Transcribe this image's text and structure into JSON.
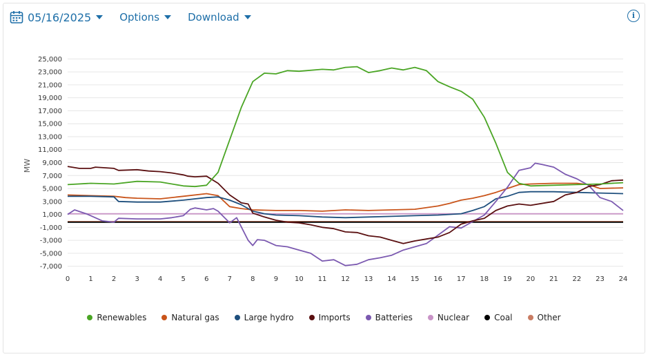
{
  "toolbar": {
    "date": "05/16/2025",
    "options_label": "Options",
    "download_label": "Download"
  },
  "colors": {
    "accent": "#1e6fa8"
  },
  "icons": {
    "calendar": "calendar-icon",
    "info": "info-icon"
  },
  "chart_data": {
    "type": "line",
    "title": "",
    "xlabel": "",
    "ylabel": "MW",
    "xlim": [
      0,
      24
    ],
    "ylim": [
      -8000,
      26000
    ],
    "x_ticks": [
      0,
      1,
      2,
      3,
      4,
      5,
      6,
      7,
      8,
      9,
      10,
      11,
      12,
      13,
      14,
      15,
      16,
      17,
      18,
      19,
      20,
      21,
      22,
      23,
      24
    ],
    "y_ticks": [
      -7000,
      -5000,
      -3000,
      -1000,
      1000,
      3000,
      5000,
      7000,
      9000,
      11000,
      13000,
      15000,
      17000,
      19000,
      21000,
      23000,
      25000
    ],
    "y_tick_labels": [
      "-7,000",
      "-5,000",
      "-3,000",
      "-1,000",
      "1,000",
      "3,000",
      "5,000",
      "7,000",
      "9,000",
      "11,000",
      "13,000",
      "15,000",
      "17,000",
      "19,000",
      "21,000",
      "23,000",
      "25,000"
    ],
    "grid": true,
    "legend_position": "bottom",
    "series": [
      {
        "name": "Renewables",
        "color": "#4aa524",
        "points": [
          [
            0,
            5600
          ],
          [
            1,
            5800
          ],
          [
            2,
            5700
          ],
          [
            3,
            6100
          ],
          [
            4,
            6000
          ],
          [
            5,
            5400
          ],
          [
            5.5,
            5300
          ],
          [
            6,
            5500
          ],
          [
            6.5,
            7500
          ],
          [
            7,
            12500
          ],
          [
            7.5,
            17500
          ],
          [
            8,
            21500
          ],
          [
            8.5,
            22800
          ],
          [
            9,
            22700
          ],
          [
            9.5,
            23200
          ],
          [
            10,
            23100
          ],
          [
            11,
            23400
          ],
          [
            11.5,
            23300
          ],
          [
            12,
            23700
          ],
          [
            12.5,
            23800
          ],
          [
            13,
            22900
          ],
          [
            13.5,
            23200
          ],
          [
            14,
            23600
          ],
          [
            14.5,
            23300
          ],
          [
            15,
            23700
          ],
          [
            15.5,
            23200
          ],
          [
            16,
            21500
          ],
          [
            16.5,
            20700
          ],
          [
            17,
            20000
          ],
          [
            17.5,
            18800
          ],
          [
            18,
            16000
          ],
          [
            18.5,
            12000
          ],
          [
            19,
            7500
          ],
          [
            19.5,
            5800
          ],
          [
            20,
            5400
          ],
          [
            21,
            5500
          ],
          [
            22,
            5600
          ],
          [
            23,
            5700
          ],
          [
            24,
            5900
          ]
        ]
      },
      {
        "name": "Natural gas",
        "color": "#c9541a",
        "points": [
          [
            0,
            4000
          ],
          [
            1,
            3900
          ],
          [
            2,
            3800
          ],
          [
            2.5,
            3600
          ],
          [
            3,
            3500
          ],
          [
            4,
            3400
          ],
          [
            5,
            3800
          ],
          [
            6,
            4200
          ],
          [
            6.5,
            3900
          ],
          [
            7,
            2200
          ],
          [
            7.5,
            1900
          ],
          [
            8,
            1700
          ],
          [
            9,
            1600
          ],
          [
            10,
            1600
          ],
          [
            11,
            1500
          ],
          [
            12,
            1700
          ],
          [
            13,
            1600
          ],
          [
            14,
            1700
          ],
          [
            15,
            1800
          ],
          [
            16,
            2300
          ],
          [
            16.5,
            2700
          ],
          [
            17,
            3200
          ],
          [
            17.5,
            3500
          ],
          [
            18,
            3900
          ],
          [
            18.5,
            4400
          ],
          [
            19,
            5000
          ],
          [
            19.5,
            5600
          ],
          [
            20,
            5700
          ],
          [
            21,
            5800
          ],
          [
            22,
            5800
          ],
          [
            22.5,
            5600
          ],
          [
            23,
            5000
          ],
          [
            24,
            5100
          ]
        ]
      },
      {
        "name": "Large hydro",
        "color": "#1e4f7d",
        "points": [
          [
            0,
            3800
          ],
          [
            1,
            3800
          ],
          [
            2,
            3700
          ],
          [
            2.2,
            3000
          ],
          [
            3,
            2900
          ],
          [
            4,
            2900
          ],
          [
            5,
            3200
          ],
          [
            6,
            3600
          ],
          [
            6.5,
            3700
          ],
          [
            7,
            3200
          ],
          [
            7.5,
            2500
          ],
          [
            8,
            1500
          ],
          [
            8.5,
            1100
          ],
          [
            9,
            900
          ],
          [
            10,
            800
          ],
          [
            11,
            600
          ],
          [
            12,
            500
          ],
          [
            13,
            600
          ],
          [
            14,
            700
          ],
          [
            15,
            800
          ],
          [
            16,
            900
          ],
          [
            17,
            1100
          ],
          [
            17.5,
            1600
          ],
          [
            18,
            2200
          ],
          [
            18.5,
            3400
          ],
          [
            19,
            3800
          ],
          [
            19.5,
            4400
          ],
          [
            20,
            4500
          ],
          [
            21,
            4500
          ],
          [
            22,
            4400
          ],
          [
            23,
            4300
          ],
          [
            24,
            4200
          ]
        ]
      },
      {
        "name": "Imports",
        "color": "#5a0f10",
        "points": [
          [
            0,
            8400
          ],
          [
            0.5,
            8100
          ],
          [
            1,
            8100
          ],
          [
            1.2,
            8300
          ],
          [
            2,
            8100
          ],
          [
            2.2,
            7800
          ],
          [
            3,
            7900
          ],
          [
            3.5,
            7700
          ],
          [
            4,
            7600
          ],
          [
            4.5,
            7400
          ],
          [
            5,
            7100
          ],
          [
            5.2,
            6900
          ],
          [
            5.5,
            6800
          ],
          [
            6,
            6900
          ],
          [
            6.5,
            5800
          ],
          [
            7,
            4000
          ],
          [
            7.5,
            2800
          ],
          [
            7.8,
            2600
          ],
          [
            8,
            1200
          ],
          [
            8.5,
            600
          ],
          [
            9,
            100
          ],
          [
            9.5,
            -200
          ],
          [
            10,
            -300
          ],
          [
            10.5,
            -600
          ],
          [
            11,
            -1000
          ],
          [
            11.5,
            -1200
          ],
          [
            12,
            -1700
          ],
          [
            12.5,
            -1800
          ],
          [
            13,
            -2300
          ],
          [
            13.5,
            -2500
          ],
          [
            14,
            -3000
          ],
          [
            14.5,
            -3500
          ],
          [
            15,
            -3100
          ],
          [
            15.5,
            -2800
          ],
          [
            16,
            -2500
          ],
          [
            16.5,
            -1800
          ],
          [
            17,
            -500
          ],
          [
            17.5,
            0
          ],
          [
            18,
            400
          ],
          [
            18.5,
            1600
          ],
          [
            19,
            2300
          ],
          [
            19.5,
            2600
          ],
          [
            20,
            2400
          ],
          [
            21,
            3000
          ],
          [
            21.5,
            4000
          ],
          [
            22,
            4400
          ],
          [
            22.5,
            5300
          ],
          [
            23,
            5600
          ],
          [
            23.5,
            6200
          ],
          [
            24,
            6300
          ]
        ]
      },
      {
        "name": "Batteries",
        "color": "#7b59b0",
        "points": [
          [
            0,
            1000
          ],
          [
            0.3,
            1700
          ],
          [
            0.8,
            1100
          ],
          [
            1,
            800
          ],
          [
            1.5,
            0
          ],
          [
            2,
            -200
          ],
          [
            2.2,
            400
          ],
          [
            3,
            300
          ],
          [
            4,
            300
          ],
          [
            4.5,
            500
          ],
          [
            5,
            800
          ],
          [
            5.3,
            1800
          ],
          [
            5.5,
            2000
          ],
          [
            6,
            1700
          ],
          [
            6.3,
            1900
          ],
          [
            6.5,
            1500
          ],
          [
            7,
            -300
          ],
          [
            7.3,
            500
          ],
          [
            7.8,
            -3000
          ],
          [
            8,
            -3800
          ],
          [
            8.2,
            -2900
          ],
          [
            8.5,
            -3000
          ],
          [
            9,
            -3800
          ],
          [
            9.5,
            -4000
          ],
          [
            10,
            -4500
          ],
          [
            10.5,
            -5000
          ],
          [
            11,
            -6200
          ],
          [
            11.5,
            -6000
          ],
          [
            12,
            -6900
          ],
          [
            12.5,
            -6700
          ],
          [
            13,
            -6000
          ],
          [
            13.5,
            -5700
          ],
          [
            14,
            -5300
          ],
          [
            14.5,
            -4500
          ],
          [
            15,
            -4000
          ],
          [
            15.5,
            -3500
          ],
          [
            16,
            -2200
          ],
          [
            16.5,
            -900
          ],
          [
            17,
            -1100
          ],
          [
            17.5,
            -100
          ],
          [
            18,
            900
          ],
          [
            18.5,
            3000
          ],
          [
            19,
            5200
          ],
          [
            19.5,
            7800
          ],
          [
            20,
            8200
          ],
          [
            20.2,
            8900
          ],
          [
            20.5,
            8700
          ],
          [
            21,
            8300
          ],
          [
            21.5,
            7200
          ],
          [
            22,
            6500
          ],
          [
            22.5,
            5500
          ],
          [
            23,
            3600
          ],
          [
            23.5,
            3000
          ],
          [
            24,
            1600
          ]
        ]
      },
      {
        "name": "Nuclear",
        "color": "#c993c7",
        "points": [
          [
            0,
            1100
          ],
          [
            24,
            1100
          ]
        ]
      },
      {
        "name": "Coal",
        "color": "#000000",
        "points": [
          [
            0,
            -200
          ],
          [
            24,
            -200
          ]
        ]
      },
      {
        "name": "Other",
        "color": "#c97c63",
        "points": [
          [
            0,
            -100
          ],
          [
            24,
            -100
          ]
        ]
      }
    ]
  }
}
